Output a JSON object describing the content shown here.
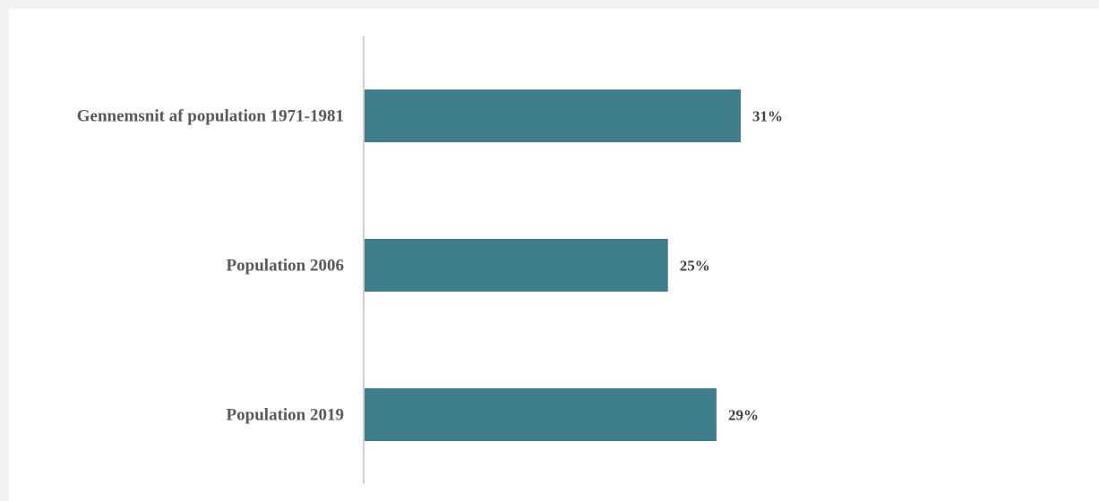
{
  "chart_data": {
    "type": "bar",
    "orientation": "horizontal",
    "categories": [
      "Gennemsnit af population 1971-1981",
      "Population 2006",
      "Population 2019"
    ],
    "values": [
      31,
      25,
      29
    ],
    "value_labels": [
      "31%",
      "25%",
      "29%"
    ],
    "unit": "%",
    "xlim": [
      0,
      60
    ],
    "grid": false,
    "legend": "none",
    "bar_color": "#3e7f8b",
    "axis_color": "#d0d0d0"
  }
}
